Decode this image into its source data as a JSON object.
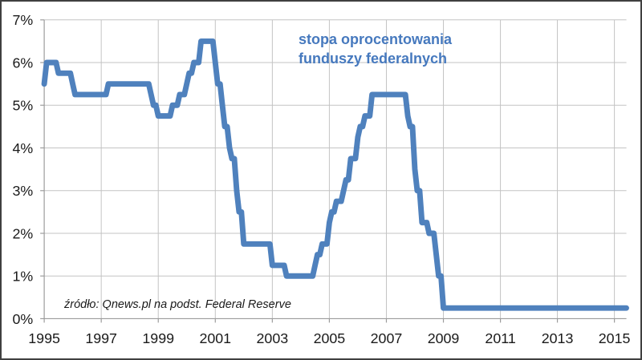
{
  "annotation": {
    "line1": "stopa oprocentowania",
    "line2": "funduszy federalnych"
  },
  "source": {
    "text": "źródło: Qnews.pl na podst. Federal Reserve"
  },
  "chart_data": {
    "type": "line",
    "title": "stopa oprocentowania funduszy federalnych",
    "source_note": "źródło: Qnews.pl na podst. Federal Reserve",
    "xlabel": "",
    "ylabel": "",
    "unit": "%",
    "grid": true,
    "legend": "none",
    "xlim": [
      1995,
      2015.42
    ],
    "ylim": [
      0,
      7
    ],
    "x_tick_years": [
      1995,
      1997,
      1999,
      2001,
      2003,
      2005,
      2007,
      2009,
      2011,
      2013,
      2015
    ],
    "x_tick_labels": [
      "1995",
      "1997",
      "1999",
      "2001",
      "2003",
      "2005",
      "2007",
      "2009",
      "2011",
      "2013",
      "2015"
    ],
    "y_tick_values": [
      0,
      1,
      2,
      3,
      4,
      5,
      6,
      7
    ],
    "y_tick_labels": [
      "0%",
      "1%",
      "2%",
      "3%",
      "4%",
      "5%",
      "6%",
      "7%"
    ],
    "series": [
      {
        "name": "stopa oprocentowania funduszy federalnych",
        "sampling": "monthly",
        "interpolation": "step-with-monthly-ramps",
        "end_x": 2015.42,
        "step_changes": [
          [
            1995.0,
            5.5
          ],
          [
            1995.083,
            6.0
          ],
          [
            1995.5,
            5.75
          ],
          [
            1995.917,
            5.5
          ],
          [
            1996.083,
            5.25
          ],
          [
            1997.167,
            5.5
          ],
          [
            1998.75,
            5.25
          ],
          [
            1998.833,
            5.0
          ],
          [
            1998.917,
            4.75
          ],
          [
            1999.5,
            5.0
          ],
          [
            1999.667,
            5.25
          ],
          [
            1999.917,
            5.5
          ],
          [
            2000.083,
            5.75
          ],
          [
            2000.25,
            6.0
          ],
          [
            2000.417,
            6.5
          ],
          [
            2001.0,
            6.0
          ],
          [
            2001.083,
            5.5
          ],
          [
            2001.25,
            5.0
          ],
          [
            2001.333,
            4.5
          ],
          [
            2001.417,
            4.0
          ],
          [
            2001.583,
            3.75
          ],
          [
            2001.667,
            3.5
          ],
          [
            2001.75,
            3.0
          ],
          [
            2001.833,
            2.5
          ],
          [
            2001.917,
            2.0
          ],
          [
            2002.0,
            1.75
          ],
          [
            2002.917,
            1.25
          ],
          [
            2003.5,
            1.0
          ],
          [
            2004.5,
            1.25
          ],
          [
            2004.583,
            1.5
          ],
          [
            2004.75,
            1.75
          ],
          [
            2004.917,
            2.0
          ],
          [
            2005.0,
            2.25
          ],
          [
            2005.083,
            2.5
          ],
          [
            2005.25,
            2.75
          ],
          [
            2005.417,
            3.0
          ],
          [
            2005.583,
            3.25
          ],
          [
            2005.667,
            3.5
          ],
          [
            2005.75,
            3.75
          ],
          [
            2005.917,
            4.0
          ],
          [
            2006.0,
            4.25
          ],
          [
            2006.083,
            4.5
          ],
          [
            2006.25,
            4.75
          ],
          [
            2006.417,
            5.0
          ],
          [
            2006.5,
            5.25
          ],
          [
            2007.75,
            4.75
          ],
          [
            2007.833,
            4.5
          ],
          [
            2007.917,
            4.25
          ],
          [
            2008.0,
            3.5
          ],
          [
            2008.083,
            3.0
          ],
          [
            2008.25,
            2.25
          ],
          [
            2008.417,
            2.0
          ],
          [
            2008.75,
            1.5
          ],
          [
            2008.833,
            1.0
          ],
          [
            2008.917,
            0.25
          ]
        ]
      }
    ],
    "colors": {
      "line": "#4F81BD",
      "annotation_text": "#4679BE",
      "gridline": "#C3C3C3",
      "axis": "#9C9C9C",
      "label_text": "#1A1A1A",
      "frame_border": "#404040",
      "background": "#FFFFFF"
    }
  }
}
